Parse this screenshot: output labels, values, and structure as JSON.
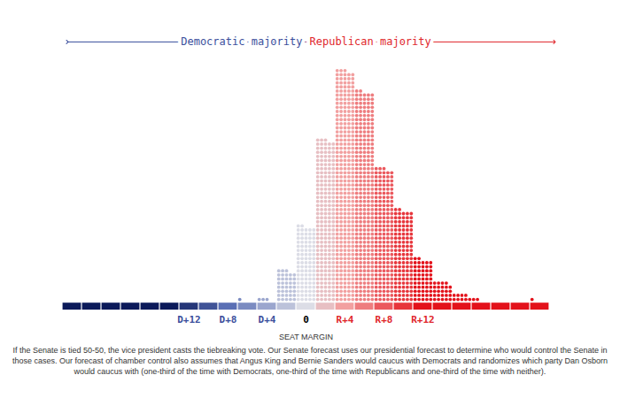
{
  "chart_data": {
    "type": "dot_histogram",
    "annotations": [
      "Democratic majority",
      "Republican majority"
    ],
    "x_label": "SEAT MARGIN",
    "x": [
      -6,
      -4,
      -2,
      0,
      2,
      4,
      6,
      8,
      10,
      12,
      14,
      16,
      18,
      24
    ],
    "values": [
      1,
      3,
      38,
      92,
      198,
      283,
      257,
      163,
      112,
      52,
      24,
      9,
      2,
      1
    ],
    "xlim": [
      -25,
      25
    ],
    "xticks": [
      {
        "value": -12,
        "label": "D+12"
      },
      {
        "value": -8,
        "label": "D+8"
      },
      {
        "value": -4,
        "label": "D+4"
      },
      0,
      {
        "value": 4,
        "label": "R+4"
      },
      {
        "value": 8,
        "label": "R+8"
      },
      {
        "value": 12,
        "label": "R+12"
      }
    ],
    "tick_labels": "x",
    "caption": "If the Senate is tied 50-50, the vice president casts the tiebreaking vote. Our Senate forecast uses our presidential forecast to determine who would control the Senate in those cases. Our forecast of chamber control also assumes that Angus King and Bernie Sanders would caucus with Democrats and randomizes which party Dan Osborn would caucus with (one-third of the time with Democrats, one-third of the time with Republicans and one-third of the time with neither)."
  }
}
